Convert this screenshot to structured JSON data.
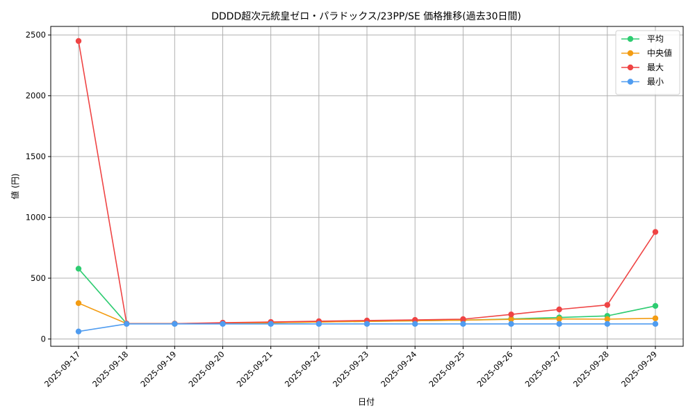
{
  "chart_data": {
    "type": "line",
    "title": "DDDD超次元統皇ゼロ・パラドックス/23PP/SE 価格推移(過去30日間)",
    "xlabel": "日付",
    "ylabel": "値 (円)",
    "x": [
      "2025-09-17",
      "2025-09-18",
      "2025-09-19",
      "2025-09-20",
      "2025-09-21",
      "2025-09-22",
      "2025-09-23",
      "2025-09-24",
      "2025-09-25",
      "2025-09-26",
      "2025-09-27",
      "2025-09-28",
      "2025-09-29"
    ],
    "ylim": [
      -60,
      2570
    ],
    "yticks": [
      0,
      500,
      1000,
      1500,
      2000,
      2500
    ],
    "grid": true,
    "legend_position": "top-right",
    "series": [
      {
        "name": "平均",
        "color": "#2ecc71",
        "values": [
          578,
          127,
          126,
          130,
          134,
          140,
          145,
          150,
          155,
          165,
          177,
          190,
          272
        ]
      },
      {
        "name": "中央値",
        "color": "#f39c12",
        "values": [
          295,
          127,
          126,
          130,
          134,
          140,
          145,
          150,
          155,
          162,
          165,
          163,
          170
        ]
      },
      {
        "name": "最大",
        "color": "#ef4444",
        "values": [
          2450,
          127,
          126,
          134,
          140,
          146,
          152,
          157,
          163,
          202,
          243,
          280,
          880
        ]
      },
      {
        "name": "最小",
        "color": "#4f9cf0",
        "values": [
          62,
          124,
          124,
          124,
          124,
          124,
          124,
          124,
          124,
          124,
          124,
          124,
          124
        ]
      }
    ]
  }
}
